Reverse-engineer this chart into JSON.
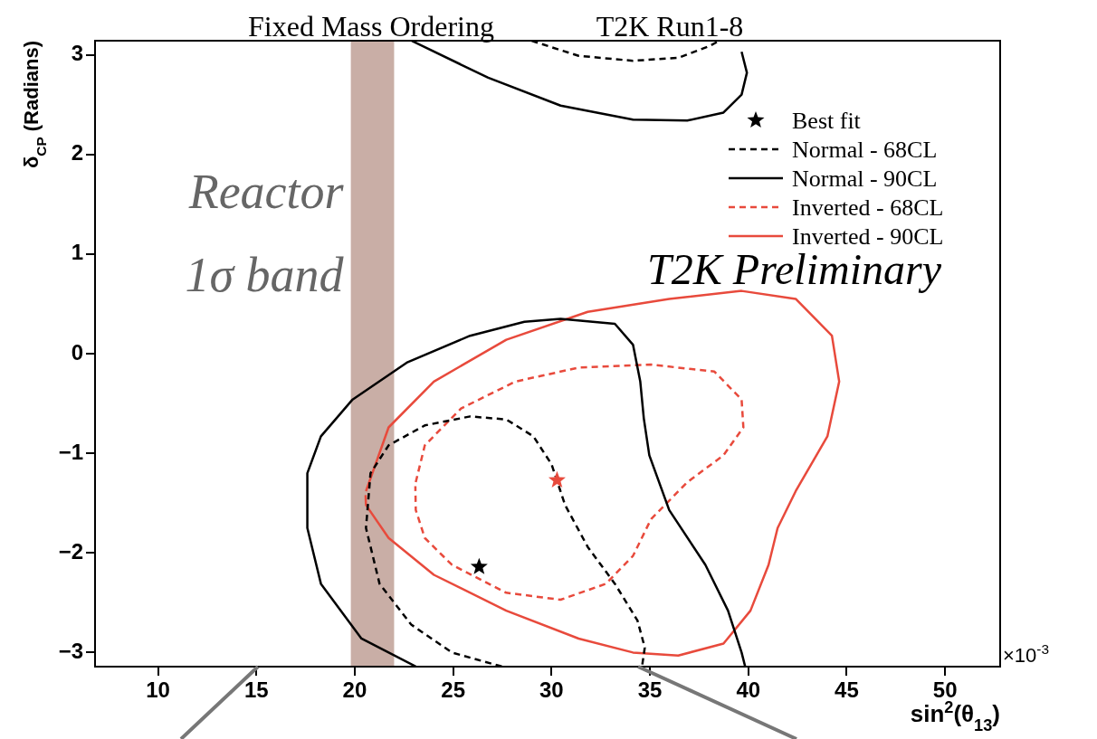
{
  "chart_data": {
    "type": "line",
    "title": "Fixed Mass Ordering",
    "xlabel": "sin$^{2}$(θ$_{13}$)",
    "ylabel": "δ$_{CP}$ (Radians)",
    "annotations": [
      "T2K Run1-8",
      "T2K Preliminary",
      "×10$^{-3}$"
    ],
    "xlim": [
      6.8,
      52.8
    ],
    "xticks": [
      10,
      15,
      20,
      25,
      30,
      35,
      40,
      45,
      50
    ],
    "ylim": [
      -3.1416,
      3.1416
    ],
    "yticks": [
      -3,
      -2,
      -1,
      0,
      1,
      2,
      3
    ],
    "grid": false,
    "legend": "top right",
    "bands": [
      {
        "axis": "x",
        "from": 19.8,
        "to": 22.0,
        "label": "Reactor 1σ band",
        "color": "#c9aea6"
      }
    ],
    "series": [
      {
        "type": "scatter",
        "name": "Best fit",
        "marker": "star",
        "colors": [
          "#000000",
          "#e84a3c"
        ],
        "x": [
          26.32,
          30.28
        ],
        "values": [
          -2.14,
          -1.27
        ]
      },
      {
        "type": "line",
        "name": "Normal - 68CL",
        "color": "#000000",
        "line_style": "dashed",
        "x": [
          27.47,
          24.94,
          22.87,
          21.26,
          20.57,
          20.8,
          21.72,
          23.56,
          25.86,
          27.7,
          29.08,
          30.0,
          30.69,
          31.84,
          33.22,
          34.37,
          34.74,
          34.6
        ],
        "values": [
          -3.14,
          -3.0,
          -2.72,
          -2.31,
          -1.75,
          -1.2,
          -0.92,
          -0.72,
          -0.63,
          -0.66,
          -0.83,
          -1.11,
          -1.52,
          -1.94,
          -2.31,
          -2.68,
          -2.95,
          -3.14
        ]
      },
      {
        "type": "line",
        "color": "#000000",
        "line_style": "dashed",
        "x": [
          28.99,
          31.38,
          34.14,
          36.44,
          38.05,
          38.51
        ],
        "values": [
          3.14,
          2.99,
          2.94,
          2.97,
          3.09,
          3.14
        ]
      },
      {
        "type": "line",
        "name": "Normal - 90CL",
        "color": "#000000",
        "line_style": "solid",
        "x": [
          23.1,
          20.34,
          18.28,
          17.59,
          17.59,
          18.28,
          19.89,
          22.64,
          25.86,
          28.62,
          30.46,
          33.22,
          34.14,
          34.51,
          34.69,
          34.97,
          35.98,
          37.82,
          38.97,
          39.66,
          39.84
        ],
        "values": [
          -3.14,
          -2.86,
          -2.31,
          -1.75,
          -1.2,
          -0.83,
          -0.46,
          -0.09,
          0.18,
          0.32,
          0.35,
          0.3,
          0.09,
          -0.28,
          -0.65,
          -1.02,
          -1.57,
          -2.12,
          -2.58,
          -3.0,
          -3.14
        ]
      },
      {
        "type": "line",
        "color": "#000000",
        "line_style": "solid",
        "x": [
          22.9,
          26.78,
          30.46,
          34.14,
          36.9,
          38.74,
          39.66,
          39.93,
          39.66
        ],
        "values": [
          3.14,
          2.77,
          2.49,
          2.35,
          2.34,
          2.42,
          2.6,
          2.82,
          3.03
        ]
      },
      {
        "type": "line",
        "name": "Inverted - 68CL",
        "color": "#e84a3c",
        "line_style": "dashed",
        "x": [
          23.1,
          23.56,
          25.4,
          28.16,
          31.38,
          35.06,
          38.28,
          39.66,
          39.75,
          38.74,
          36.9,
          35.06,
          34.14,
          32.76,
          30.46,
          27.7,
          24.94,
          23.56,
          23.1,
          23.08
        ],
        "values": [
          -1.29,
          -0.92,
          -0.55,
          -0.28,
          -0.14,
          -0.11,
          -0.18,
          -0.46,
          -0.74,
          -1.02,
          -1.29,
          -1.66,
          -2.03,
          -2.31,
          -2.47,
          -2.4,
          -2.12,
          -1.85,
          -1.57,
          -1.33
        ]
      },
      {
        "type": "line",
        "name": "Inverted - 90CL",
        "color": "#e84a3c",
        "line_style": "solid",
        "x": [
          20.57,
          21.72,
          24.02,
          27.7,
          31.84,
          35.98,
          39.66,
          42.41,
          44.25,
          44.62,
          44.02,
          42.41,
          41.49,
          41.03,
          40.11,
          38.74,
          36.44,
          34.14,
          31.38,
          27.7,
          24.02,
          21.72,
          20.57,
          20.55
        ],
        "values": [
          -1.38,
          -0.74,
          -0.28,
          0.14,
          0.42,
          0.55,
          0.63,
          0.55,
          0.18,
          -0.28,
          -0.83,
          -1.38,
          -1.75,
          -2.12,
          -2.58,
          -2.91,
          -3.03,
          -3.0,
          -2.86,
          -2.58,
          -2.22,
          -1.85,
          -1.52,
          -1.42
        ]
      }
    ]
  }
}
